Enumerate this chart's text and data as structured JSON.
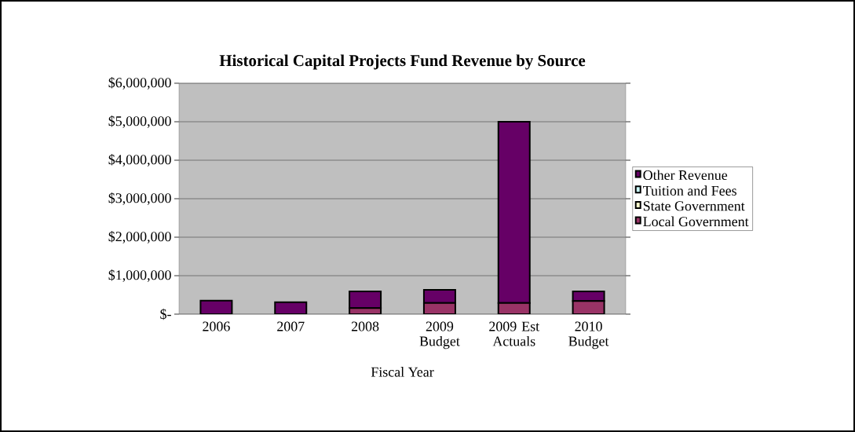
{
  "chart_data": {
    "type": "bar",
    "title": "Historical Capital Projects Fund Revenue by Source",
    "xlabel": "Fiscal Year",
    "categories": [
      "2006",
      "2007",
      "2008",
      "2009 Budget",
      "2009 Est Actuals",
      "2010 Budget"
    ],
    "stacked": true,
    "series": [
      {
        "name": "Local Government",
        "color": "#993366",
        "values": [
          0,
          0,
          160000,
          290000,
          290000,
          340000
        ]
      },
      {
        "name": "State Government",
        "color": "#ffffcc",
        "values": [
          0,
          0,
          0,
          0,
          0,
          0
        ]
      },
      {
        "name": "Tuition and Fees",
        "color": "#ccffff",
        "values": [
          0,
          0,
          0,
          0,
          0,
          0
        ]
      },
      {
        "name": "Other Revenue",
        "color": "#660066",
        "values": [
          350000,
          310000,
          430000,
          340000,
          4710000,
          250000
        ]
      }
    ],
    "ylim": [
      0,
      6000000
    ],
    "yticks": [
      {
        "value": 0,
        "label": "$-"
      },
      {
        "value": 1000000,
        "label": "$1,000,000"
      },
      {
        "value": 2000000,
        "label": "$2,000,000"
      },
      {
        "value": 3000000,
        "label": "$3,000,000"
      },
      {
        "value": 4000000,
        "label": "$4,000,000"
      },
      {
        "value": 5000000,
        "label": "$5,000,000"
      },
      {
        "value": 6000000,
        "label": "$6,000,000"
      }
    ],
    "grid": "y",
    "legend": "right"
  }
}
